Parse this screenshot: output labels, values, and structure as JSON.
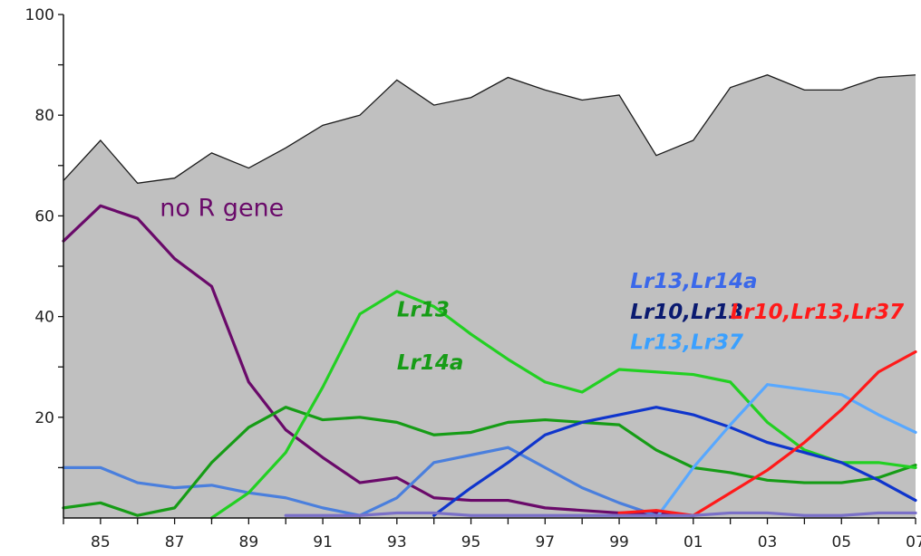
{
  "chart_data": {
    "type": "area",
    "xlim": [
      1984,
      2007
    ],
    "ylim": [
      0,
      100
    ],
    "grid": false,
    "x_ticks": [
      "85",
      "87",
      "89",
      "91",
      "93",
      "95",
      "97",
      "99",
      "01",
      "03",
      "05",
      "07"
    ],
    "y_ticks": [
      "20",
      "40",
      "60",
      "80",
      "100"
    ],
    "x": [
      1984,
      1985,
      1986,
      1987,
      1988,
      1989,
      1990,
      1991,
      1992,
      1993,
      1994,
      1995,
      1996,
      1997,
      1998,
      1999,
      2000,
      2001,
      2002,
      2003,
      2004,
      2005,
      2006,
      2007
    ],
    "area_series": {
      "color": "#c0c0c0",
      "values": [
        67,
        75,
        66.5,
        67.5,
        72.5,
        69.5,
        73.5,
        78,
        80,
        87,
        82,
        83.5,
        87.5,
        85,
        83,
        84,
        72,
        75,
        85.5,
        88,
        85,
        85,
        87.5,
        88
      ]
    },
    "series": [
      {
        "color": "#4a7fdd",
        "values": [
          10,
          10,
          7,
          6,
          6.5,
          5,
          4,
          2,
          0.5,
          null,
          null,
          null,
          null,
          null,
          null,
          null,
          null,
          null,
          null,
          null,
          null,
          null,
          null,
          null
        ]
      },
      {
        "color": "#6a0a6a",
        "values": [
          55,
          62,
          59.5,
          51.5,
          46,
          27,
          17.5,
          12,
          7,
          8,
          4,
          3.5,
          3.5,
          2,
          1.5,
          1,
          1,
          0.5,
          null,
          null,
          null,
          null,
          null,
          null
        ]
      },
      {
        "color": "#169c16",
        "values": [
          2,
          3,
          0.5,
          2,
          11,
          18,
          22,
          19.5,
          20,
          19,
          16.5,
          17,
          19,
          19.5,
          19,
          18.5,
          13.5,
          10,
          9,
          7.5,
          7,
          7,
          8,
          10.5
        ]
      },
      {
        "color": "#22d022",
        "values": [
          null,
          null,
          null,
          null,
          0,
          5,
          13,
          26,
          40.5,
          45,
          42,
          36.5,
          31.5,
          27,
          25,
          29.5,
          29,
          28.5,
          27,
          19,
          13.5,
          11,
          11,
          10
        ]
      },
      {
        "color": "#4a7fdd",
        "values": [
          null,
          null,
          null,
          null,
          null,
          null,
          null,
          null,
          0.5,
          4,
          11,
          12.5,
          14,
          10,
          6,
          3,
          0.5,
          null,
          null,
          null,
          null,
          null,
          null,
          null
        ]
      },
      {
        "color": "#0f35cc",
        "values": [
          null,
          null,
          null,
          null,
          null,
          null,
          null,
          null,
          null,
          null,
          0.5,
          6,
          11,
          16.5,
          19,
          20.5,
          22,
          20.5,
          18,
          15,
          13,
          11,
          7.5,
          3.5
        ]
      },
      {
        "color": "#58a8ff",
        "values": [
          null,
          null,
          null,
          null,
          null,
          null,
          null,
          null,
          null,
          null,
          null,
          null,
          null,
          null,
          null,
          null,
          0,
          10,
          18.5,
          26.5,
          25.5,
          24.5,
          20.5,
          17
        ]
      },
      {
        "color": "#ff1a1a",
        "values": [
          null,
          null,
          null,
          null,
          null,
          null,
          null,
          null,
          null,
          null,
          null,
          null,
          null,
          null,
          null,
          1,
          1.5,
          0.5,
          5,
          9.5,
          15,
          21.5,
          29,
          33
        ]
      },
      {
        "color": "#7a70c8",
        "values": [
          null,
          null,
          null,
          null,
          null,
          null,
          0.5,
          0.5,
          0.5,
          1,
          1,
          0.5,
          0.5,
          0.5,
          0.5,
          0.5,
          0.5,
          0.5,
          1,
          1,
          0.5,
          0.5,
          1,
          1
        ]
      }
    ],
    "annotations": [
      {
        "text": "no R gene",
        "color": "#6a0a6a",
        "style": "plain",
        "x": 1986.6,
        "y": 60
      },
      {
        "text": "Lr13",
        "color": "#169c16",
        "style": "italic-bold",
        "x": 1993.0,
        "y": 40
      },
      {
        "text": "Lr14a",
        "color": "#169c16",
        "style": "italic-bold",
        "x": 1993.0,
        "y": 29.5
      },
      {
        "text": "Lr13,Lr14a",
        "color": "#3a68ea",
        "style": "italic-bold",
        "x": 1999.3,
        "y": 45.7
      },
      {
        "text": "Lr10,Lr13",
        "color": "#0a1a70",
        "style": "italic-bold",
        "x": 1999.3,
        "y": 39.6
      },
      {
        "text": "Lr13,Lr37",
        "color": "#3aa0ff",
        "style": "italic-bold",
        "x": 1999.3,
        "y": 33.5
      },
      {
        "text": "Lr10,Lr13,Lr37",
        "color": "#ff1a1a",
        "style": "italic-bold",
        "x": 2002.0,
        "y": 39.6
      }
    ]
  }
}
